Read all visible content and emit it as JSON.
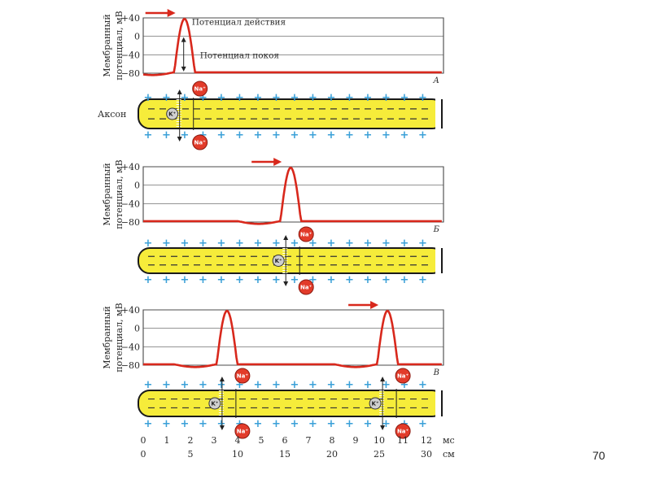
{
  "panels": [
    {
      "letter": "А",
      "y_label": [
        "Мембранный",
        "потенциал, мВ"
      ],
      "y_ticks": [
        "+40",
        "0",
        "−40",
        "−80"
      ],
      "annotations": {
        "action": "Потенциал действия",
        "rest": "Потенциал покоя"
      },
      "axon_label": "Аксон",
      "spikes_at_ms": [
        1.3
      ]
    },
    {
      "letter": "Б",
      "y_label": [
        "Мембранный",
        "потенциал, мВ"
      ],
      "y_ticks": [
        "+40",
        "0",
        "−40",
        "−80"
      ],
      "spikes_at_ms": [
        5.8
      ]
    },
    {
      "letter": "В",
      "y_label": [
        "Мембранный",
        "потенциал, мВ"
      ],
      "y_ticks": [
        "+40",
        "0",
        "−40",
        "−80"
      ],
      "spikes_at_ms": [
        3.1,
        9.9
      ]
    }
  ],
  "ions": {
    "na": "Na⁺",
    "k": "K⁺"
  },
  "x_axis": {
    "ms_ticks": [
      "0",
      "1",
      "2",
      "3",
      "4",
      "5",
      "6",
      "7",
      "8",
      "9",
      "10",
      "11",
      "12"
    ],
    "ms_unit": "мс",
    "cm_ticks": [
      "0",
      "5",
      "10",
      "15",
      "20",
      "25",
      "30"
    ],
    "cm_unit": "см"
  },
  "page_number": "70",
  "colors": {
    "trace": "#d8281c",
    "axon_fill": "#f6ec3a",
    "plus": "#3aa0d8",
    "ion": "#e23b2a"
  }
}
